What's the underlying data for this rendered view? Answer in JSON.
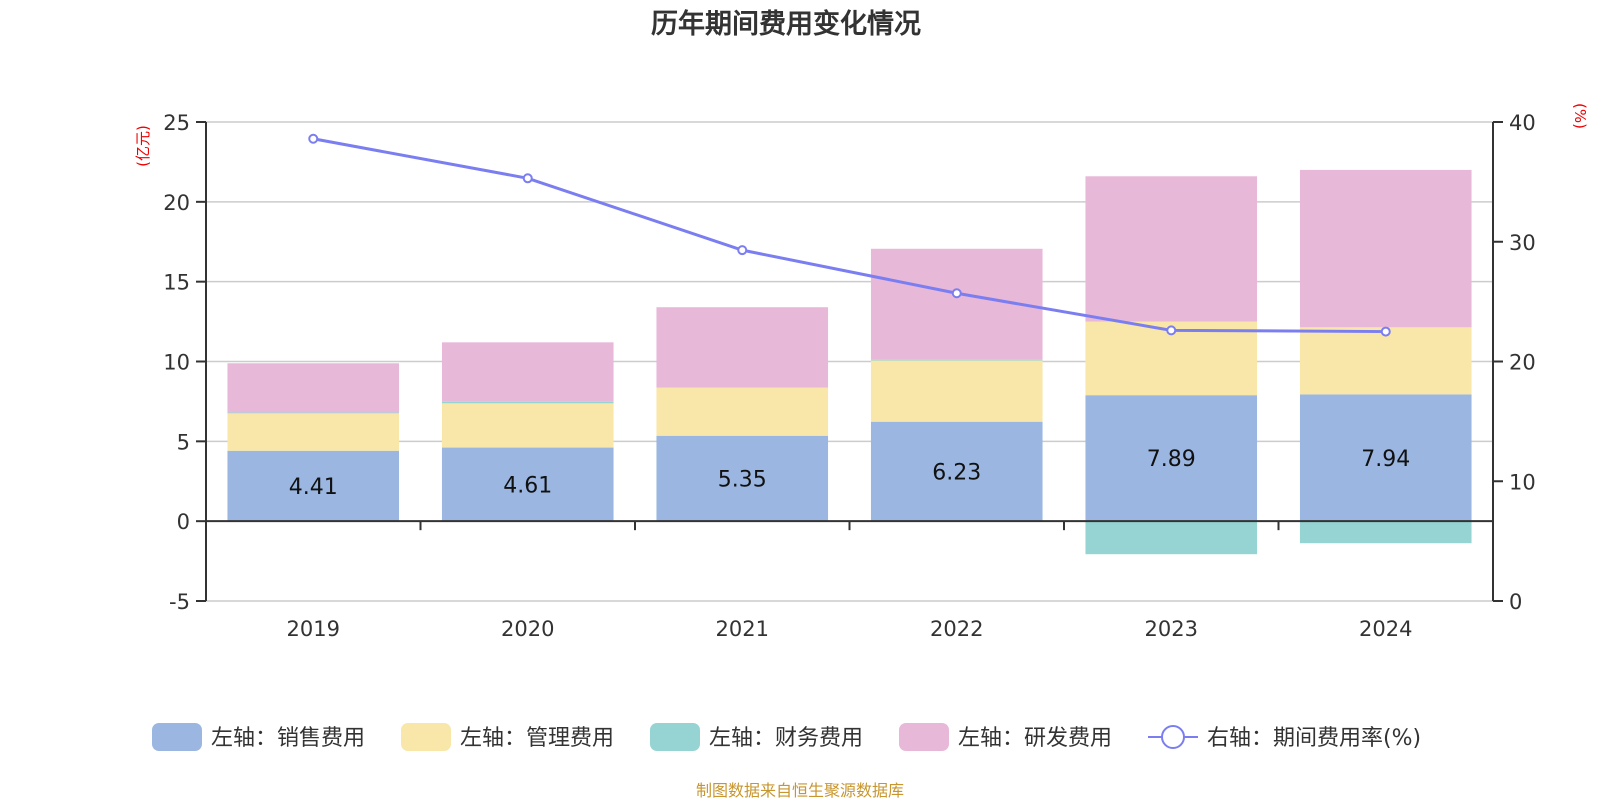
{
  "chart_data": {
    "type": "bar",
    "stacked": true,
    "title": "历年期间费用变化情况",
    "categories": [
      "2019",
      "2020",
      "2021",
      "2022",
      "2023",
      "2024"
    ],
    "left_axis": {
      "unit_label": "(亿元)",
      "ylim": [
        -5,
        25
      ],
      "ticks": [
        "25",
        "20",
        "15",
        "10",
        "5",
        "0",
        "-5"
      ],
      "tick_values": [
        25,
        20,
        15,
        10,
        5,
        0,
        -5
      ]
    },
    "right_axis": {
      "unit_label": "(%)",
      "ylim": [
        0,
        40
      ],
      "ticks": [
        "40",
        "30",
        "20",
        "10",
        "0"
      ],
      "tick_values": [
        40,
        30,
        20,
        10,
        0
      ]
    },
    "grid": true,
    "legend_position": "bottom",
    "series": [
      {
        "name": "左轴：销售费用",
        "axis": "left",
        "type": "bar",
        "color": "#9bb7e1",
        "values": [
          4.41,
          4.61,
          5.35,
          6.23,
          7.89,
          7.94
        ],
        "labels": [
          "4.41",
          "4.61",
          "5.35",
          "6.23",
          "7.89",
          "7.94"
        ]
      },
      {
        "name": "左轴：管理费用",
        "axis": "left",
        "type": "bar",
        "color": "#f8e7a9",
        "values": [
          2.38,
          2.77,
          3.01,
          3.87,
          4.61,
          4.2
        ]
      },
      {
        "name": "左轴：财务费用",
        "axis": "left",
        "type": "bar",
        "color": "#96d4d4",
        "values": [
          0.02,
          0.1,
          -0.03,
          0.01,
          -2.07,
          -1.38
        ]
      },
      {
        "name": "左轴：研发费用",
        "axis": "left",
        "type": "bar",
        "color": "#e8b8d8",
        "values": [
          3.08,
          3.72,
          5.04,
          6.95,
          9.1,
          9.86
        ]
      },
      {
        "name": "右轴：期间费用率(%)",
        "axis": "right",
        "type": "line",
        "color": "#7b7ef0",
        "values": [
          38.6,
          35.3,
          29.3,
          25.7,
          22.6,
          22.5
        ]
      }
    ],
    "source": "制图数据来自恒生聚源数据库"
  }
}
